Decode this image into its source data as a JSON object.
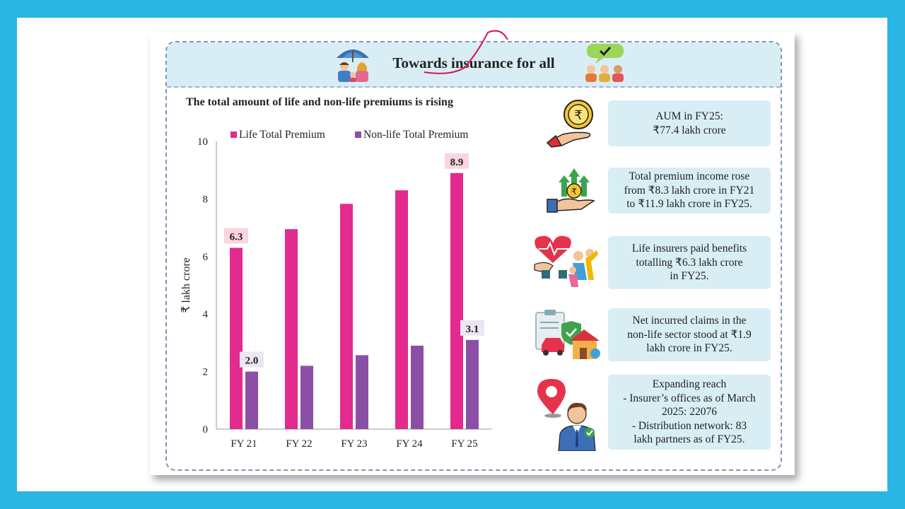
{
  "title": "Towards insurance for all",
  "chart_title": "The total amount of life and non-life premiums is rising",
  "chart_data": {
    "type": "bar",
    "categories": [
      "FY 21",
      "FY 22",
      "FY 23",
      "FY 24",
      "FY 25"
    ],
    "series": [
      {
        "name": "Life Total Premium",
        "values": [
          6.3,
          6.95,
          7.83,
          8.3,
          8.9
        ],
        "color": "#e22a8f"
      },
      {
        "name": "Non-life Total Premium",
        "values": [
          2.0,
          2.2,
          2.57,
          2.9,
          3.1
        ],
        "color": "#8c4fa6"
      }
    ],
    "ylabel": "₹ lakh crore",
    "ylim": [
      0,
      10
    ],
    "yticks": [
      "0",
      "2",
      "4",
      "6",
      "8",
      "10"
    ],
    "data_labels": [
      {
        "series": 0,
        "index": 0,
        "text": "6.3"
      },
      {
        "series": 1,
        "index": 0,
        "text": "2.0"
      },
      {
        "series": 0,
        "index": 4,
        "text": "8.9"
      },
      {
        "series": 1,
        "index": 4,
        "text": "3.1"
      }
    ],
    "legend_position": "top",
    "grid": false
  },
  "info": [
    {
      "text": "AUM in FY25:\n₹77.4 lakh crore",
      "icon": "rupee-coin-hand-icon"
    },
    {
      "text": "Total premium income rose\nfrom ₹8.3 lakh crore in FY21\nto ₹11.9 lakh crore in FY25.",
      "icon": "growth-hand-icon"
    },
    {
      "text": "Life insurers paid benefits\ntotalling ₹6.3 lakh crore\nin FY25.",
      "icon": "heart-family-icon"
    },
    {
      "text": "Net incurred claims in the\nnon-life sector stood at ₹1.9\nlakh crore in FY25.",
      "icon": "car-house-claims-icon"
    },
    {
      "text": "Expanding reach\n- Insurer’s offices as of March\n2025: 22076\n- Distribution network: 83\nlakh partners as of FY25.",
      "icon": "agent-location-icon"
    }
  ],
  "colors": {
    "accent": "#e22a8f",
    "secondary": "#8c4fa6",
    "panel": "#d9eef4",
    "border": "#29b6e2"
  }
}
